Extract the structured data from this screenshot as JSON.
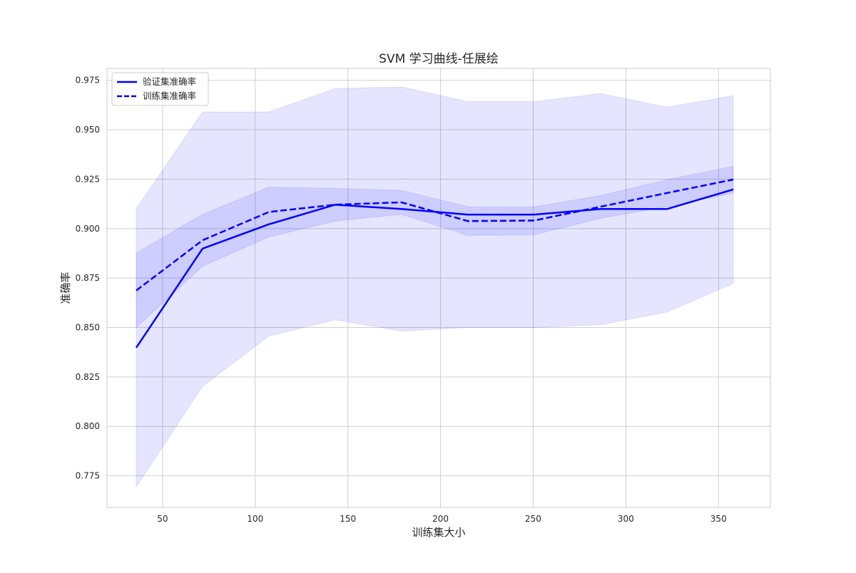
{
  "chart_data": {
    "type": "line",
    "title": "SVM 学习曲线-任展绘",
    "xlabel": "训练集大小",
    "ylabel": "准确率",
    "xlim": [
      20,
      378
    ],
    "ylim": [
      0.759,
      0.981
    ],
    "xticks": [
      50,
      100,
      150,
      200,
      250,
      300,
      350
    ],
    "yticks": [
      0.775,
      0.8,
      0.825,
      0.85,
      0.875,
      0.9,
      0.925,
      0.95,
      0.975
    ],
    "grid": true,
    "legend_position": "top-left",
    "colors": {
      "line": "#0000ff",
      "band": "#0000ff",
      "grid": "#d0d0d0",
      "spine": "#cccccc"
    },
    "x": [
      35.8,
      71.6,
      107.4,
      143.2,
      179.0,
      214.8,
      250.6,
      286.4,
      322.2,
      358.0
    ],
    "series": [
      {
        "name": "验证集准确率",
        "style": "solid",
        "values": [
          0.8398,
          0.8899,
          0.9022,
          0.9121,
          0.9099,
          0.9071,
          0.9071,
          0.9099,
          0.9099,
          0.9198
        ],
        "lower": [
          0.7694,
          0.8203,
          0.8457,
          0.8539,
          0.8482,
          0.85,
          0.85,
          0.8514,
          0.8578,
          0.8723
        ],
        "upper": [
          0.9101,
          0.959,
          0.959,
          0.9708,
          0.9716,
          0.9642,
          0.9642,
          0.9683,
          0.9614,
          0.9672
        ]
      },
      {
        "name": "训练集准确率",
        "style": "dashed",
        "values": [
          0.8687,
          0.8941,
          0.9084,
          0.9121,
          0.9133,
          0.9038,
          0.9041,
          0.9111,
          0.918,
          0.9248
        ],
        "lower": [
          0.85,
          0.881,
          0.8958,
          0.9038,
          0.9072,
          0.8966,
          0.8969,
          0.9053,
          0.911,
          0.918
        ],
        "upper": [
          0.8876,
          0.9072,
          0.921,
          0.9203,
          0.9193,
          0.911,
          0.911,
          0.9167,
          0.9247,
          0.9315
        ]
      }
    ]
  }
}
